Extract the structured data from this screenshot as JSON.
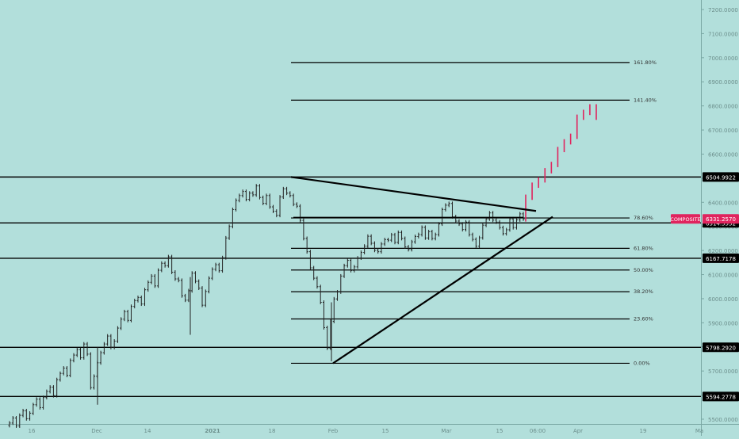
{
  "chart_data": {
    "type": "bar",
    "symbol": "COMPOSITE",
    "current_price": "6331.2570",
    "ylim": [
      5450,
      7250
    ],
    "y_ticks": [
      "7200.0000",
      "7100.0000",
      "7000.0000",
      "6900.0000",
      "6800.0000",
      "6700.0000",
      "6600.0000",
      "6500.0000",
      "6400.0000",
      "6300.0000",
      "6200.0000",
      "6100.0000",
      "6000.0000",
      "5900.0000",
      "5800.0000",
      "5700.0000",
      "5600.0000",
      "5500.0000"
    ],
    "x_ticks": [
      "16",
      "Dec",
      "14",
      "2021",
      "18",
      "Feb",
      "15",
      "Mar",
      "15",
      "06:00",
      "Apr",
      "19",
      "Ma"
    ],
    "x_tick_bold": [
      "2021"
    ],
    "price_levels": [
      {
        "value": 6504.9922,
        "label": "6504.9922"
      },
      {
        "value": 6314.5552,
        "label": "6314.5552"
      },
      {
        "value": 6167.7178,
        "label": "6167.7178"
      },
      {
        "value": 5798.292,
        "label": "5798.2920"
      },
      {
        "value": 5594.2778,
        "label": "5594.2778"
      }
    ],
    "fib_levels": [
      {
        "value": 6980,
        "label": "161.80%"
      },
      {
        "value": 6824,
        "label": "141.40%"
      },
      {
        "value": 6335,
        "label": "78.60%"
      },
      {
        "value": 6209,
        "label": "61.80%"
      },
      {
        "value": 6119,
        "label": "50.00%"
      },
      {
        "value": 6029,
        "label": "38.20%"
      },
      {
        "value": 5916,
        "label": "23.60%"
      },
      {
        "value": 5732,
        "label": "0.00%"
      }
    ],
    "trendlines": [
      {
        "from": [
          0.13,
          6505
        ],
        "to": [
          0.4,
          6364
        ]
      },
      {
        "from": [
          0.165,
          5732
        ],
        "to": [
          0.44,
          6340
        ]
      }
    ],
    "bars": [
      5484,
      5505,
      5472,
      5516,
      5535,
      5502,
      5525,
      5560,
      5583,
      5548,
      5590,
      5615,
      5633,
      5598,
      5664,
      5690,
      5712,
      5682,
      5744,
      5766,
      5789,
      5755,
      5812,
      5770,
      5631,
      5678,
      5734,
      5776,
      5812,
      5845,
      5798,
      5824,
      5878,
      5915,
      5946,
      5910,
      5968,
      5992,
      6005,
      5978,
      6037,
      6068,
      6094,
      6053,
      6118,
      6147,
      6137,
      6174,
      6110,
      6082,
      6076,
      6012,
      5994,
      6033,
      6106,
      6072,
      6044,
      5973,
      6030,
      6085,
      6122,
      6141,
      6116,
      6170,
      6252,
      6300,
      6370,
      6408,
      6428,
      6445,
      6412,
      6438,
      6431,
      6468,
      6420,
      6396,
      6428,
      6381,
      6363,
      6346,
      6422,
      6456,
      6438,
      6428,
      6392,
      6384,
      6325,
      6250,
      6195,
      6128,
      6085,
      6050,
      5985,
      5880,
      5795,
      5906,
      5999,
      6028,
      6094,
      6137,
      6159,
      6117,
      6132,
      6169,
      6192,
      6218,
      6259,
      6230,
      6201,
      6195,
      6227,
      6245,
      6243,
      6265,
      6234,
      6275,
      6250,
      6215,
      6204,
      6236,
      6258,
      6266,
      6296,
      6252,
      6278,
      6250,
      6266,
      6310,
      6370,
      6388,
      6395,
      6340,
      6322,
      6310,
      6287,
      6318,
      6266,
      6246,
      6218,
      6253,
      6305,
      6331,
      6356,
      6326,
      6318,
      6295,
      6270,
      6286,
      6331,
      6295,
      6327,
      6352,
      6331
    ],
    "projection": [
      6420,
      6470,
      6492,
      6530,
      6556,
      6618,
      6650,
      6673,
      6752,
      6772,
      6795,
      6752
    ]
  }
}
